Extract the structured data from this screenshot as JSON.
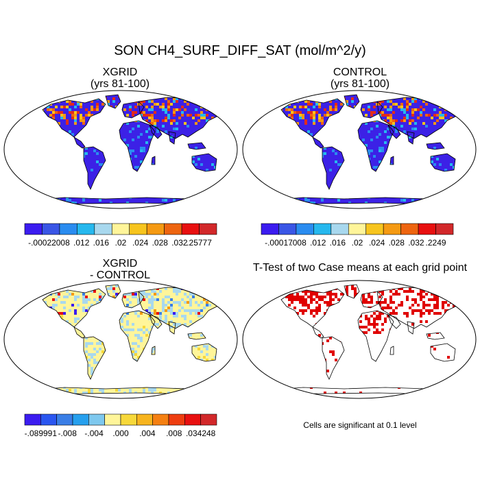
{
  "title": "SON CH4_SURF_DIFF_SAT (mol/m^2/y)",
  "panels": [
    {
      "id": "xgrid",
      "title_line1": "XGRID",
      "title_line2": "(yrs 81-100)"
    },
    {
      "id": "control",
      "title_line1": "CONTROL",
      "title_line2": "(yrs 81-100)"
    },
    {
      "id": "diff",
      "title_line1": "XGRID",
      "title_line2": "- CONTROL"
    },
    {
      "id": "ttest",
      "title_line1": "T-Test of two Case means at each grid point"
    }
  ],
  "colorbars": {
    "xgrid": {
      "colors": [
        "#3b1cf0",
        "#3a56e6",
        "#2a8cf0",
        "#26b8ee",
        "#a8d8ee",
        "#fff59a",
        "#f7c51e",
        "#f59a12",
        "#ee6510",
        "#e81010",
        "#d2282a"
      ],
      "labels": [
        "-.00022",
        ".008",
        ".012",
        ".016",
        ".02",
        ".024",
        ".028",
        ".032",
        ".25777"
      ]
    },
    "control": {
      "colors": [
        "#3b1cf0",
        "#3a56e6",
        "#2a8cf0",
        "#26b8ee",
        "#a8d8ee",
        "#fff59a",
        "#f7c51e",
        "#f59a12",
        "#ee6510",
        "#e81010",
        "#d2282a"
      ],
      "labels": [
        "-.00017",
        ".008",
        ".012",
        ".016",
        ".02",
        ".024",
        ".028",
        ".032",
        ".2249"
      ]
    },
    "diff": {
      "colors": [
        "#3b1cf0",
        "#2a56f0",
        "#3a7ee6",
        "#26a0ee",
        "#7ec8ee",
        "#fff59a",
        "#f7d83a",
        "#f7b41e",
        "#f58012",
        "#ee3d10",
        "#e81010",
        "#d2282a"
      ],
      "labels": [
        "-.089991",
        "-.008",
        "-.004",
        ".000",
        ".004",
        ".008",
        ".034248"
      ]
    }
  },
  "significance_note": "Cells are significant at 0.1 level",
  "map_colors": {
    "ocean": "#ffffff",
    "land_low": "#3c21e6",
    "land_high": "#e22b1a",
    "diff_land": "#fff59a",
    "diff_neg": "#a8d8ee",
    "significant": "#e00000"
  }
}
